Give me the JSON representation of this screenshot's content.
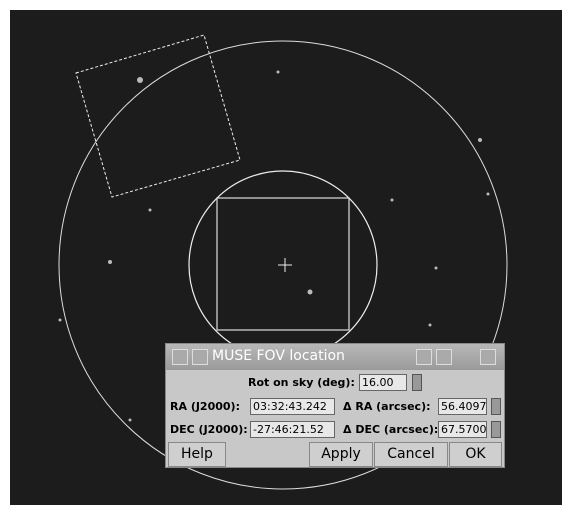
{
  "dialog": {
    "title": "MUSE FOV location",
    "rot": {
      "label": "Rot on sky (deg):",
      "value": "16.00"
    },
    "ra": {
      "label": "RA (J2000):",
      "value": "03:32:43.242",
      "offset_label": "Δ RA (arcsec):",
      "offset_value": "56.4097"
    },
    "dec": {
      "label": "DEC (J2000):",
      "value": "-27:46:21.52",
      "offset_label": "Δ DEC (arcsec):",
      "offset_value": "67.5700"
    },
    "buttons": [
      "Help",
      "Apply",
      "Cancel",
      "OK"
    ]
  }
}
